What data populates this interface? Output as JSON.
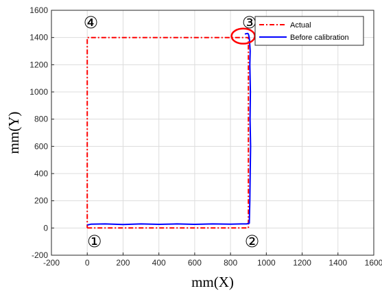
{
  "chart_data": {
    "type": "line",
    "title": "",
    "xlabel": "mm(X)",
    "ylabel": "mm(Y)",
    "xlim": [
      -200,
      1600
    ],
    "ylim": [
      -200,
      1600
    ],
    "xticks": [
      -200,
      0,
      200,
      400,
      600,
      800,
      1000,
      1200,
      1400,
      1600
    ],
    "yticks": [
      -200,
      0,
      200,
      400,
      600,
      800,
      1000,
      1200,
      1400,
      1600
    ],
    "grid": true,
    "legend": "top-right",
    "series": [
      {
        "name": "Actual",
        "color": "#ff0000",
        "style": "dash-dot",
        "x": [
          0,
          900,
          900,
          0,
          0
        ],
        "y": [
          0,
          0,
          1400,
          1400,
          0
        ]
      },
      {
        "name": "Before calibration",
        "color": "#0000ff",
        "style": "solid",
        "x": [
          0,
          20,
          100,
          200,
          300,
          400,
          500,
          600,
          700,
          800,
          860,
          890,
          905,
          908,
          910,
          912,
          909,
          911,
          908,
          910,
          906,
          903,
          900,
          896,
          888,
          880
        ],
        "y": [
          22,
          28,
          30,
          26,
          30,
          27,
          30,
          27,
          30,
          28,
          30,
          30,
          35,
          200,
          400,
          600,
          800,
          1000,
          1200,
          1300,
          1380,
          1410,
          1425,
          1430,
          1428,
          1425
        ]
      }
    ],
    "annotations": [
      {
        "label": "①",
        "x": 40,
        "y": -100
      },
      {
        "label": "②",
        "x": 920,
        "y": -100
      },
      {
        "label": "③",
        "x": 905,
        "y": 1510
      },
      {
        "label": "④",
        "x": 20,
        "y": 1510
      }
    ],
    "highlight": {
      "shape": "ellipse",
      "color": "#ff0000",
      "x": 890,
      "y": 1410
    }
  }
}
